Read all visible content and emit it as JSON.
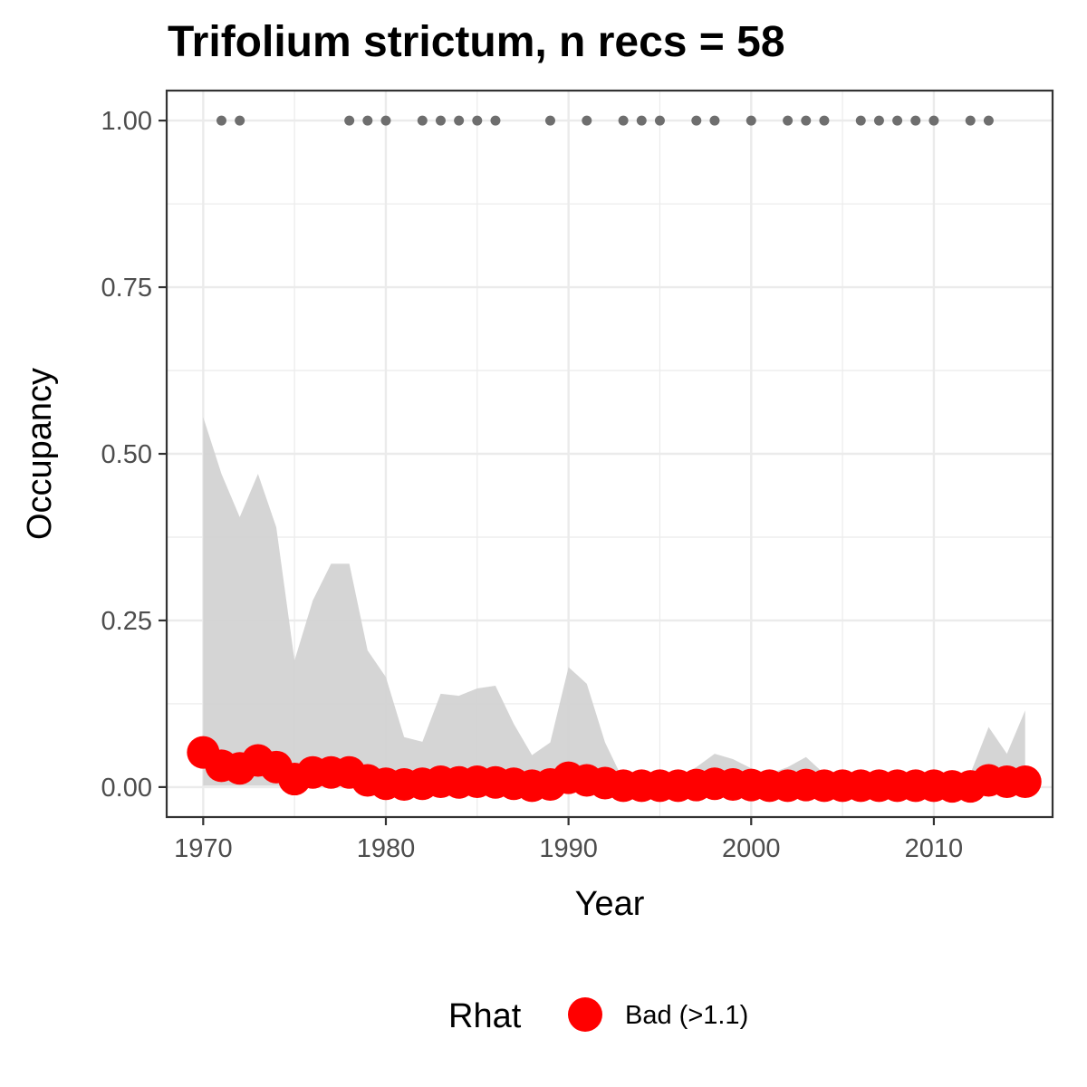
{
  "chart_data": {
    "type": "line",
    "title": "Trifolium strictum, n recs = 58",
    "xlabel": "Year",
    "ylabel": "Occupancy",
    "xlim": [
      1968,
      2016.5
    ],
    "ylim": [
      -0.045,
      1.045
    ],
    "x_ticks": [
      1970,
      1980,
      1990,
      2000,
      2010
    ],
    "y_ticks": [
      0,
      0.25,
      0.5,
      0.75,
      1
    ],
    "x_tick_labels": [
      "1970",
      "1980",
      "1990",
      "2000",
      "2010"
    ],
    "y_tick_labels": [
      "0.00",
      "0.25",
      "0.50",
      "0.75",
      "1.00"
    ],
    "grid": true,
    "legend": {
      "title": "Rhat",
      "placement": "bottom",
      "entries": [
        {
          "label": "Bad (>1.1)",
          "color": "#ff0000"
        }
      ]
    },
    "colors": {
      "occupancy_points": "#ff0000",
      "credible_interval": "#d3d3d3",
      "records": "#6e6e6e",
      "panel_border": "#333333",
      "grid": "#ebebeb"
    },
    "years": [
      1970,
      1971,
      1972,
      1973,
      1974,
      1975,
      1976,
      1977,
      1978,
      1979,
      1980,
      1981,
      1982,
      1983,
      1984,
      1985,
      1986,
      1987,
      1988,
      1989,
      1990,
      1991,
      1992,
      1993,
      1994,
      1995,
      1996,
      1997,
      1998,
      1999,
      2000,
      2001,
      2002,
      2003,
      2004,
      2005,
      2006,
      2007,
      2008,
      2009,
      2010,
      2011,
      2012,
      2013,
      2014,
      2015
    ],
    "series": [
      {
        "type": "scatter",
        "values": [
          0.052,
          0.032,
          0.028,
          0.04,
          0.03,
          0.012,
          0.022,
          0.022,
          0.022,
          0.01,
          0.005,
          0.004,
          0.005,
          0.008,
          0.007,
          0.008,
          0.007,
          0.005,
          0.002,
          0.004,
          0.014,
          0.01,
          0.006,
          0.002,
          0.002,
          0.002,
          0.002,
          0.003,
          0.005,
          0.004,
          0.003,
          0.002,
          0.002,
          0.003,
          0.002,
          0.002,
          0.002,
          0.002,
          0.002,
          0.002,
          0.002,
          0.001,
          0.001,
          0.01,
          0.008,
          0.008
        ]
      },
      {
        "type": "area",
        "lower": [
          0.002,
          0.002,
          0.002,
          0.002,
          0.002,
          0.001,
          0.001,
          0.001,
          0.001,
          0.001,
          0.001,
          0.0,
          0.0,
          0.0,
          0.0,
          0.0,
          0.0,
          0.0,
          0.0,
          0.0,
          0.0,
          0.0,
          0.0,
          0.0,
          0.0,
          0.0,
          0.0,
          0.0,
          0.0,
          0.0,
          0.0,
          0.0,
          0.0,
          0.0,
          0.0,
          0.0,
          0.0,
          0.0,
          0.0,
          0.0,
          0.0,
          0.0,
          0.0,
          0.0,
          0.0,
          0.0
        ],
        "upper": [
          0.555,
          0.47,
          0.405,
          0.47,
          0.39,
          0.19,
          0.28,
          0.335,
          0.335,
          0.205,
          0.165,
          0.075,
          0.068,
          0.14,
          0.137,
          0.148,
          0.152,
          0.095,
          0.048,
          0.067,
          0.18,
          0.155,
          0.067,
          0.01,
          0.01,
          0.01,
          0.015,
          0.03,
          0.05,
          0.042,
          0.028,
          0.02,
          0.03,
          0.045,
          0.02,
          0.015,
          0.015,
          0.015,
          0.015,
          0.015,
          0.015,
          0.01,
          0.02,
          0.09,
          0.05,
          0.115
        ]
      },
      {
        "type": "scatter",
        "x": [
          1971,
          1972,
          1978,
          1979,
          1980,
          1982,
          1983,
          1984,
          1985,
          1986,
          1989,
          1991,
          1993,
          1994,
          1995,
          1997,
          1998,
          2000,
          2002,
          2003,
          2004,
          2006,
          2007,
          2008,
          2009,
          2010,
          2012,
          2013
        ],
        "values": [
          1,
          1,
          1,
          1,
          1,
          1,
          1,
          1,
          1,
          1,
          1,
          1,
          1,
          1,
          1,
          1,
          1,
          1,
          1,
          1,
          1,
          1,
          1,
          1,
          1,
          1,
          1,
          1
        ]
      }
    ]
  }
}
